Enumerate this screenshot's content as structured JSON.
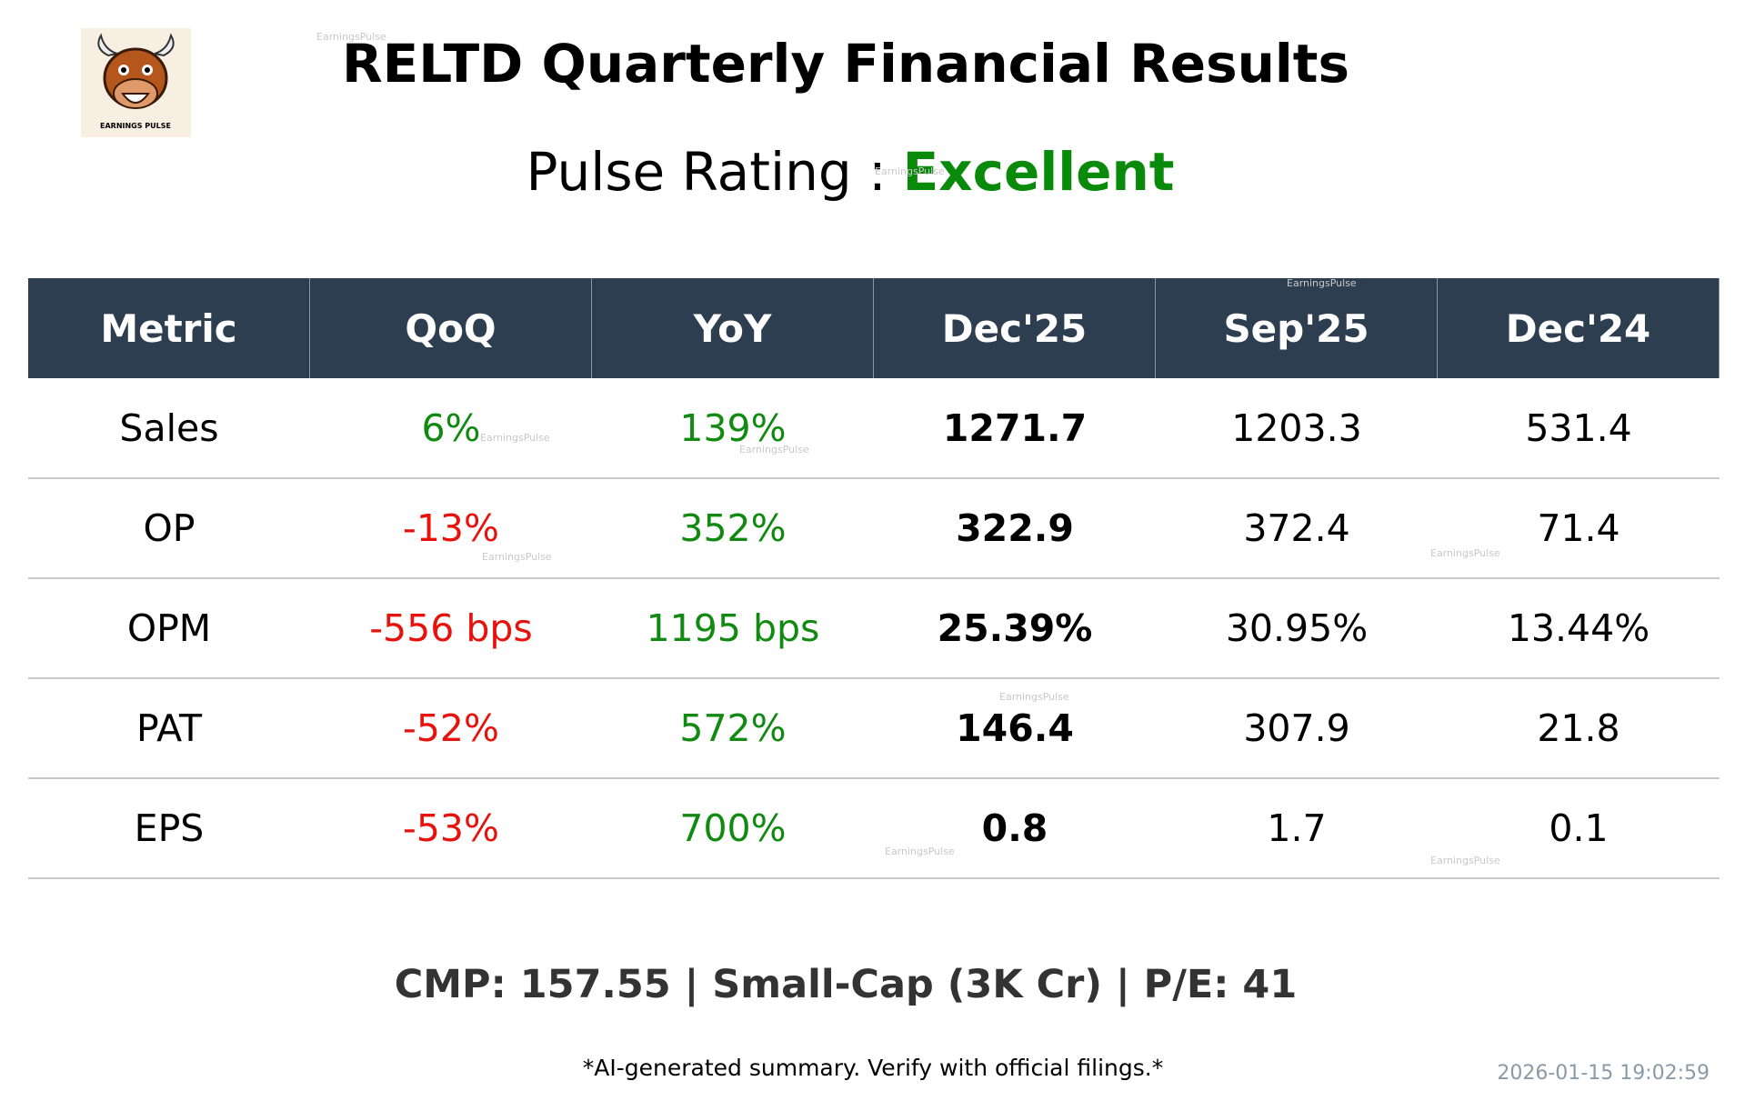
{
  "logo": {
    "text": "EARNINGS PULSE"
  },
  "watermark": "EarningsPulse",
  "header": {
    "title": "RELTD Quarterly Financial Results",
    "rating_label": "Pulse Rating :",
    "rating": "Excellent"
  },
  "table": {
    "columns": [
      "Metric",
      "QoQ",
      "YoY",
      "Dec'25",
      "Sep'25",
      "Dec'24"
    ],
    "rows": [
      [
        "Sales",
        "6%",
        "139%",
        "1271.7",
        "1203.3",
        "531.4"
      ],
      [
        "OP",
        "-13%",
        "352%",
        "322.9",
        "372.4",
        "71.4"
      ],
      [
        "OPM",
        "-556 bps",
        "1195 bps",
        "25.39%",
        "30.95%",
        "13.44%"
      ],
      [
        "PAT",
        "-52%",
        "572%",
        "146.4",
        "307.9",
        "21.8"
      ],
      [
        "EPS",
        "-53%",
        "700%",
        "0.8",
        "1.7",
        "0.1"
      ]
    ]
  },
  "footer": {
    "summary": "CMP: 157.55 | Small-Cap (3K Cr) | P/E: 41",
    "disclaimer": "*AI-generated summary. Verify with official filings.*",
    "timestamp": "2026-01-15 19:02:59"
  }
}
